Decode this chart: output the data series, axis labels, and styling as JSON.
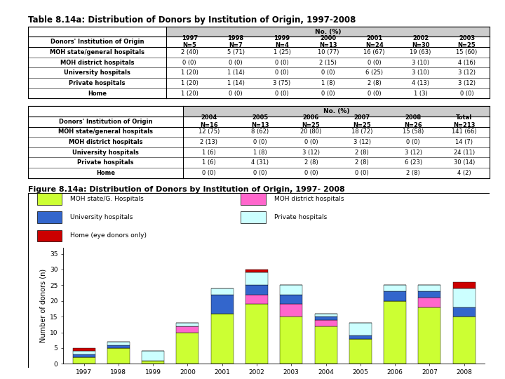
{
  "title_table": "Table 8.14a: Distribution of Donors by Institution of Origin, 1997-2008",
  "title_figure": "Figure 8.14a: Distribution of Donors by Institution of Origin, 1997- 2008",
  "table1_header_row0": [
    "",
    "No. (%)"
  ],
  "table1_header_row1": [
    "Donors' Institution of Origin",
    "1997\nN=5",
    "1998\nN=7",
    "1999\nN=4",
    "2000\nN=13",
    "2001\nN=24",
    "2002\nN=30",
    "2003\nN=25"
  ],
  "table1_data": [
    [
      "MOH state/general hospitals",
      "2 (40)",
      "5 (71)",
      "1 (25)",
      "10 (77)",
      "16 (67)",
      "19 (63)",
      "15 (60)"
    ],
    [
      "MOH district hospitals",
      "0 (0)",
      "0 (0)",
      "0 (0)",
      "2 (15)",
      "0 (0)",
      "3 (10)",
      "4 (16)"
    ],
    [
      "University hospitals",
      "1 (20)",
      "1 (14)",
      "0 (0)",
      "0 (0)",
      "6 (25)",
      "3 (10)",
      "3 (12)"
    ],
    [
      "Private hospitals",
      "1 (20)",
      "1 (14)",
      "3 (75)",
      "1 (8)",
      "2 (8)",
      "4 (13)",
      "3 (12)"
    ],
    [
      "Home",
      "1 (20)",
      "0 (0)",
      "0 (0)",
      "0 (0)",
      "0 (0)",
      "1 (3)",
      "0 (0)"
    ]
  ],
  "table2_header_row1": [
    "Donors' Institution of Origin",
    "2004\nN=16",
    "2005\nN=13",
    "2006\nN=25",
    "2007\nN=25",
    "2008\nN=26",
    "Total\nN=213"
  ],
  "table2_data": [
    [
      "MOH state/general hospitals",
      "12 (75)",
      "8 (62)",
      "20 (80)",
      "18 (72)",
      "15 (58)",
      "141 (66)"
    ],
    [
      "MOH district hospitals",
      "2 (13)",
      "0 (0)",
      "0 (0)",
      "3 (12)",
      "0 (0)",
      "14 (7)"
    ],
    [
      "University hospitals",
      "1 (6)",
      "1 (8)",
      "3 (12)",
      "2 (8)",
      "3 (12)",
      "24 (11)"
    ],
    [
      "Private hospitals",
      "1 (6)",
      "4 (31)",
      "2 (8)",
      "2 (8)",
      "6 (23)",
      "30 (14)"
    ],
    [
      "Home",
      "0 (0)",
      "0 (0)",
      "0 (0)",
      "0 (0)",
      "2 (8)",
      "4 (2)"
    ]
  ],
  "years": [
    1997,
    1998,
    1999,
    2000,
    2001,
    2002,
    2003,
    2004,
    2005,
    2006,
    2007,
    2008
  ],
  "bar_data": {
    "MOH state/G. Hospitals": [
      2,
      5,
      1,
      10,
      16,
      19,
      15,
      12,
      8,
      20,
      18,
      15
    ],
    "MOH district hospitals": [
      0,
      0,
      0,
      2,
      0,
      3,
      4,
      2,
      0,
      0,
      3,
      0
    ],
    "University hospitals": [
      1,
      1,
      0,
      0,
      6,
      3,
      3,
      1,
      1,
      3,
      2,
      3
    ],
    "Private hospitals": [
      1,
      1,
      3,
      1,
      2,
      4,
      3,
      1,
      4,
      2,
      2,
      6
    ],
    "Home (eye donors only)": [
      1,
      0,
      0,
      0,
      0,
      1,
      0,
      0,
      0,
      0,
      0,
      2
    ]
  },
  "bar_colors": {
    "MOH state/G. Hospitals": "#ccff33",
    "MOH district hospitals": "#ff66cc",
    "University hospitals": "#3366cc",
    "Private hospitals": "#ccffff",
    "Home (eye donors only)": "#cc0000"
  },
  "series_order": [
    "MOH state/G. Hospitals",
    "MOH district hospitals",
    "University hospitals",
    "Private hospitals",
    "Home (eye donors only)"
  ],
  "legend_left": [
    "MOH state/G. Hospitals",
    "University hospitals",
    "Home (eye donors only)"
  ],
  "legend_right": [
    "MOH district hospitals",
    "Private hospitals"
  ],
  "ylabel": "Number of donors (n)",
  "ylim": [
    0,
    37
  ],
  "yticks": [
    0,
    5,
    10,
    15,
    20,
    25,
    30,
    35
  ],
  "col_widths_t1": [
    0.3,
    0.1,
    0.1,
    0.1,
    0.1,
    0.1,
    0.1,
    0.1
  ],
  "col_widths_t2": [
    0.35,
    0.115,
    0.115,
    0.115,
    0.115,
    0.115,
    0.115
  ]
}
